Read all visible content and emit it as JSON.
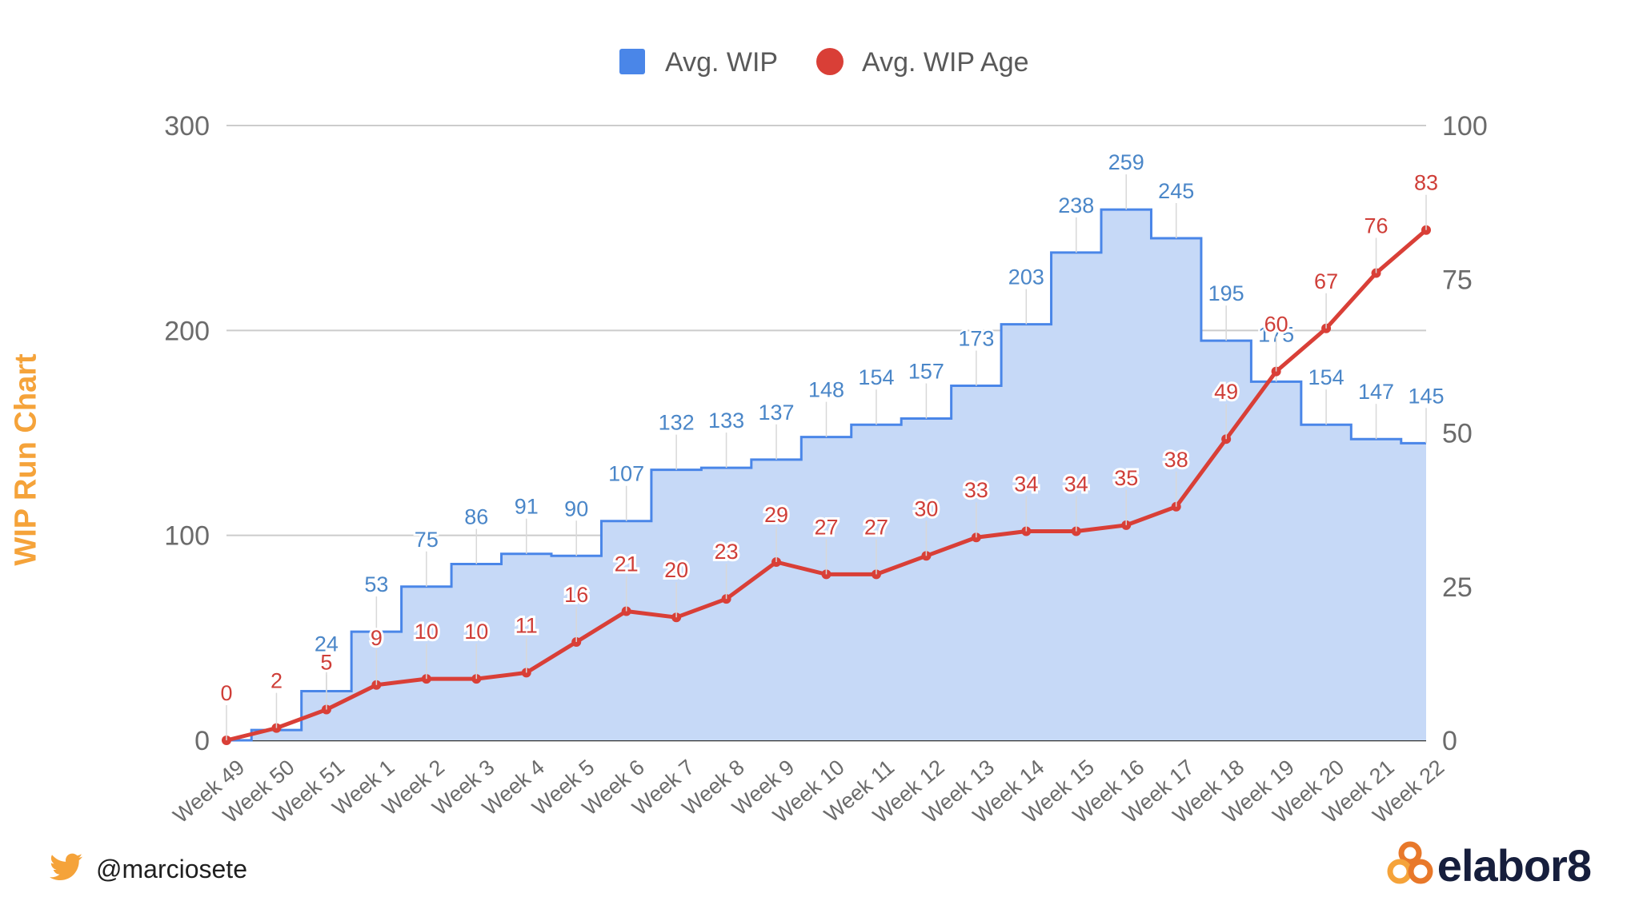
{
  "side_title": "WIP Run Chart",
  "handle": {
    "text": "@marciosete",
    "icon": "twitter-bird-icon"
  },
  "logo": {
    "text": "elabor8",
    "icon": "elabor8-mark-icon"
  },
  "colors": {
    "wip_line": "#4a86e8",
    "wip_fill": "#c6d9f7",
    "age_line": "#d93f37",
    "side_title": "#f5a33a",
    "twitter": "#f5a33a",
    "logo_mark": "#e8782a"
  },
  "chart_data": {
    "type": "area",
    "categories": [
      "Week 49",
      "Week 50",
      "Week 51",
      "Week 1",
      "Week 2",
      "Week 3",
      "Week 4",
      "Week 5",
      "Week 6",
      "Week 7",
      "Week 8",
      "Week 9",
      "Week 10",
      "Week 11",
      "Week 12",
      "Week 13",
      "Week 14",
      "Week 15",
      "Week 16",
      "Week 17",
      "Week 18",
      "Week 19",
      "Week 20",
      "Week 21",
      "Week 22"
    ],
    "series": [
      {
        "name": "Avg. WIP",
        "style": "stepped-area",
        "axis": "left",
        "values": [
          0,
          5,
          24,
          53,
          75,
          86,
          91,
          90,
          107,
          132,
          133,
          137,
          148,
          154,
          157,
          173,
          203,
          238,
          259,
          245,
          195,
          175,
          154,
          147,
          145
        ]
      },
      {
        "name": "Avg. WIP Age",
        "style": "line",
        "axis": "right",
        "values": [
          0,
          2,
          5,
          9,
          10,
          10,
          11,
          16,
          21,
          20,
          23,
          29,
          27,
          27,
          30,
          33,
          34,
          34,
          35,
          38,
          49,
          60,
          67,
          76,
          83
        ]
      }
    ],
    "wip_label_text": [
      "",
      "",
      "24",
      "53",
      "75",
      "86",
      "91",
      "90",
      "107",
      "132",
      "133",
      "137",
      "148",
      "154",
      "157",
      "173",
      "203",
      "238",
      "259",
      "245",
      "195",
      "175",
      "154",
      "147",
      "145"
    ],
    "age_label_text": [
      "0",
      "2",
      "5",
      "9",
      "10",
      "10",
      "11",
      "16",
      "21",
      "20",
      "23",
      "29",
      "27",
      "27",
      "30",
      "33",
      "34",
      "34",
      "35",
      "38",
      "49",
      "60",
      "67",
      "76",
      "83"
    ],
    "y_left": {
      "min": 0,
      "max": 300,
      "ticks": [
        "0",
        "100",
        "200",
        "300"
      ]
    },
    "y_right": {
      "min": 0,
      "max": 100,
      "ticks": [
        "0",
        "25",
        "50",
        "75",
        "100"
      ]
    },
    "grid": true,
    "legend_position": "top"
  }
}
